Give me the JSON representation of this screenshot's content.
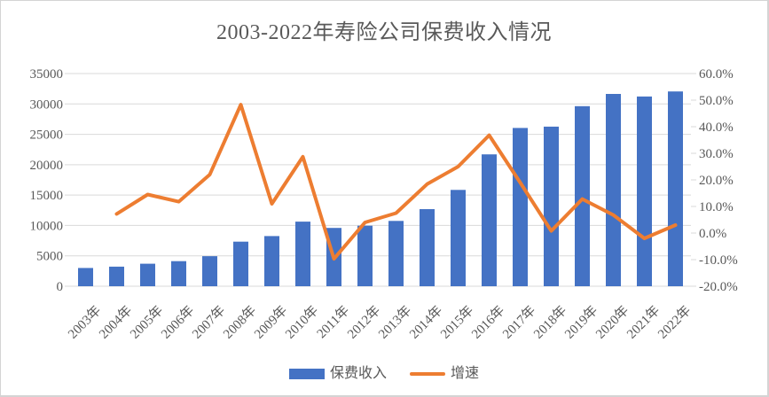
{
  "page": {
    "background": "#ffffff",
    "border_color": "#d4d4d4"
  },
  "chart_data": {
    "type": "combo-bar-line",
    "title": "2003-2022年寿险公司保费收入情况",
    "categories": [
      "2003年",
      "2004年",
      "2005年",
      "2006年",
      "2007年",
      "2008年",
      "2009年",
      "2010年",
      "2011年",
      "2012年",
      "2013年",
      "2014年",
      "2015年",
      "2016年",
      "2017年",
      "2018年",
      "2019年",
      "2020年",
      "2021年",
      "2022年"
    ],
    "series": [
      {
        "name": "保费收入",
        "type": "bar",
        "axis": "left",
        "color": "#4472C4",
        "values": [
          3011,
          3228,
          3697,
          4132,
          4949,
          7338,
          8261,
          10632,
          9600,
          9958,
          10741,
          12690,
          15859,
          21693,
          26040,
          26261,
          29628,
          31640,
          31224,
          32053
        ]
      },
      {
        "name": "增速",
        "type": "line",
        "axis": "right",
        "color": "#ED7D31",
        "values": [
          null,
          7.2,
          14.5,
          11.8,
          22.0,
          48.3,
          11.0,
          28.7,
          -9.7,
          4.0,
          7.5,
          18.4,
          25.0,
          36.8,
          19.0,
          0.8,
          12.8,
          6.8,
          -2.0,
          3.0
        ]
      }
    ],
    "left_axis": {
      "min": 0,
      "max": 35000,
      "step": 5000,
      "tick_labels": [
        "0",
        "5000",
        "10000",
        "15000",
        "20000",
        "25000",
        "30000",
        "35000"
      ]
    },
    "right_axis": {
      "min": -20,
      "max": 60,
      "step": 10,
      "tick_labels": [
        "-20.0%",
        "-10.0%",
        "0.0%",
        "10.0%",
        "20.0%",
        "30.0%",
        "40.0%",
        "50.0%",
        "60.0%"
      ]
    },
    "grid": true,
    "legend_position": "bottom"
  },
  "legend": {
    "items": [
      {
        "label": "保费收入",
        "swatch": "bar",
        "color": "#4472C4"
      },
      {
        "label": "增速",
        "swatch": "line",
        "color": "#ED7D31"
      }
    ]
  },
  "colors": {
    "bar": "#4472C4",
    "line": "#ED7D31",
    "gridline": "#D9D9D9",
    "axis_text": "#595959",
    "title_text": "#595959"
  }
}
